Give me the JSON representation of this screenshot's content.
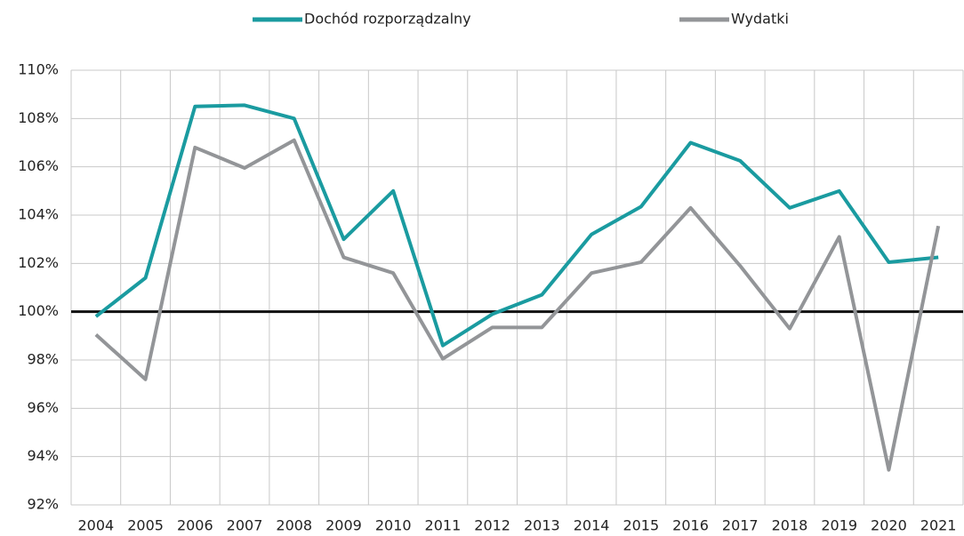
{
  "chart_data": {
    "type": "line",
    "categories": [
      "2004",
      "2005",
      "2006",
      "2007",
      "2008",
      "2009",
      "2010",
      "2011",
      "2012",
      "2013",
      "2014",
      "2015",
      "2016",
      "2017",
      "2018",
      "2019",
      "2020",
      "2021"
    ],
    "series": [
      {
        "name": "Dochód rozporządzalny",
        "color": "#1a9ba0",
        "values": [
          99.8,
          101.4,
          108.5,
          108.55,
          108.0,
          103.0,
          105.0,
          98.6,
          99.9,
          100.7,
          103.2,
          104.35,
          107.0,
          106.25,
          104.3,
          105.0,
          102.05,
          102.25
        ]
      },
      {
        "name": "Wydatki",
        "color": "#939598",
        "values": [
          99.05,
          97.2,
          106.8,
          105.95,
          107.1,
          102.25,
          101.6,
          98.05,
          99.35,
          99.35,
          101.6,
          102.05,
          104.3,
          101.9,
          99.3,
          103.1,
          93.45,
          103.55
        ]
      }
    ],
    "ylim": [
      92,
      110
    ],
    "yticks": [
      {
        "value": 92,
        "label": "92%"
      },
      {
        "value": 94,
        "label": "94%"
      },
      {
        "value": 96,
        "label": "96%"
      },
      {
        "value": 98,
        "label": "98%"
      },
      {
        "value": 100,
        "label": "100%"
      },
      {
        "value": 102,
        "label": "102%"
      },
      {
        "value": 104,
        "label": "104%"
      },
      {
        "value": 106,
        "label": "106%"
      },
      {
        "value": 108,
        "label": "108%"
      },
      {
        "value": 110,
        "label": "110%"
      }
    ],
    "grid": true,
    "baseline": 100,
    "legend": "top"
  }
}
